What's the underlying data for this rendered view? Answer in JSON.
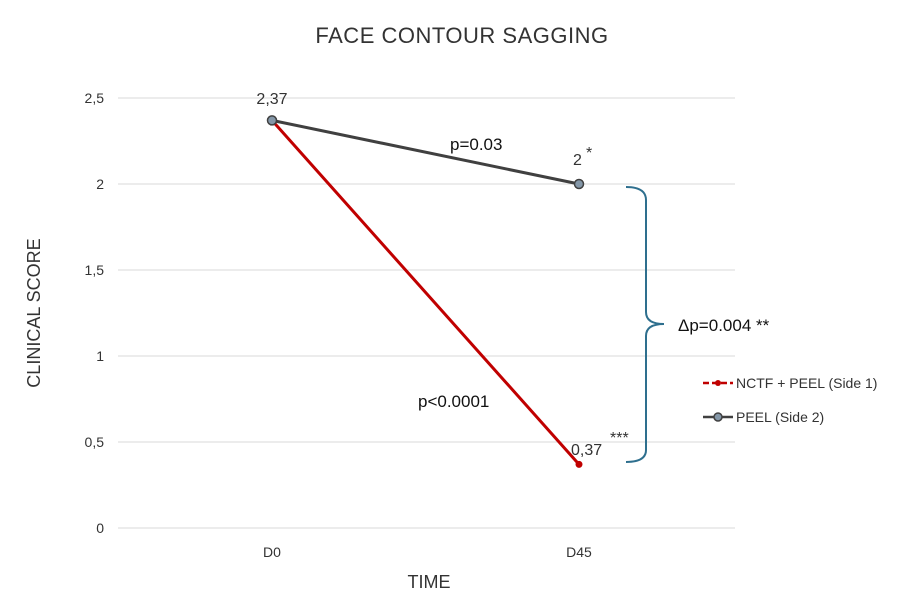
{
  "chart_data": {
    "type": "line",
    "title": "FACE CONTOUR SAGGING",
    "xlabel": "TIME",
    "ylabel": "CLINICAL SCORE",
    "categories": [
      "D0",
      "D45"
    ],
    "ylim": [
      0,
      2.5
    ],
    "yticks": [
      0,
      0.5,
      1,
      1.5,
      2,
      2.5
    ],
    "ytick_labels": [
      "0",
      "0,5",
      "1",
      "1,5",
      "2",
      "2,5"
    ],
    "grid": true,
    "legend_position": "right",
    "series": [
      {
        "name": "NCTF + PEEL (Side 1)",
        "values": [
          2.37,
          0.37
        ],
        "color": "#c00000",
        "data_labels": [
          "",
          "0,37"
        ],
        "label_suffix": "***",
        "p_label": "p<0.0001"
      },
      {
        "name": "PEEL (Side 2)",
        "values": [
          2.37,
          2.0
        ],
        "color": "#404040",
        "marker_color": "#8497a8",
        "data_labels": [
          "2,37",
          "2"
        ],
        "label_suffix": "*",
        "p_label": "p=0.03"
      }
    ],
    "annotations": {
      "delta": "Δp=0.004 **",
      "bracket_color": "#2e6f8e"
    }
  }
}
